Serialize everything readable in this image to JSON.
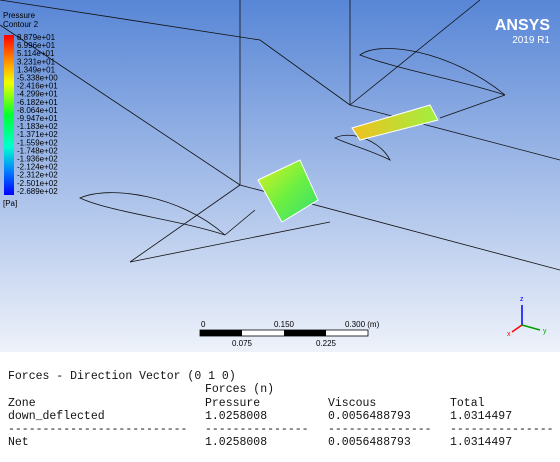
{
  "viewport": {
    "legend": {
      "title": [
        "Pressure",
        "Contour 2"
      ],
      "labels": [
        "8.879e+01",
        "6.996e+01",
        "5.114e+01",
        "3.231e+01",
        "1.349e+01",
        "-5.338e+00",
        "-2.416e+01",
        "-4.299e+01",
        "-6.182e+01",
        "-8.064e+01",
        "-9.947e+01",
        "-1.183e+02",
        "-1.371e+02",
        "-1.559e+02",
        "-1.748e+02",
        "-1.936e+02",
        "-2.124e+02",
        "-2.312e+02",
        "-2.501e+02",
        "-2.689e+02"
      ],
      "unit": "[Pa]"
    },
    "logo": {
      "brand": "ANSYS",
      "version": "2019 R1"
    },
    "scale_bar": {
      "top_labels": [
        "0",
        "0.150",
        "0.300 (m)"
      ],
      "bottom_labels": [
        "0.075",
        "0.225"
      ]
    },
    "axes": [
      "z",
      "y",
      "x"
    ]
  },
  "console": {
    "heading": "Forces - Direction Vector (0 1 0)",
    "subheading": "Forces (n)",
    "columns": [
      "Zone",
      "Pressure",
      "Viscous",
      "Total"
    ],
    "rows": [
      [
        "down_deflected",
        "1.0258008",
        "0.0056488793",
        "1.0314497"
      ],
      [
        "Net",
        "1.0258008",
        "0.0056488793",
        "1.0314497"
      ]
    ],
    "separator": [
      "--------------------------",
      "---------------",
      "---------------",
      "---------------"
    ]
  }
}
